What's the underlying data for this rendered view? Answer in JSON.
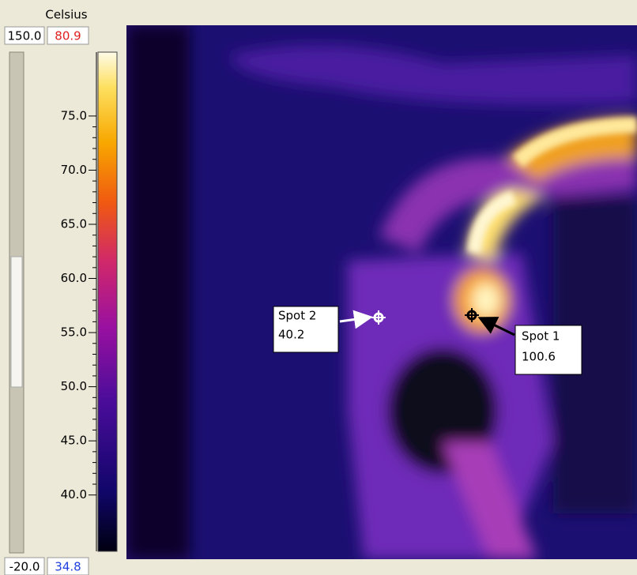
{
  "scale": {
    "unit": "Celsius",
    "range_max": "150.0",
    "range_min": "-20.0",
    "span_max": 80.9,
    "span_min": 34.8,
    "ticks": [
      {
        "value": 75,
        "label": "75.0"
      },
      {
        "value": 70,
        "label": "70.0"
      },
      {
        "value": 65,
        "label": "65.0"
      },
      {
        "value": 60,
        "label": "60.0"
      },
      {
        "value": 55,
        "label": "55.0"
      },
      {
        "value": 50,
        "label": "50.0"
      },
      {
        "value": 45,
        "label": "45.0"
      },
      {
        "value": 40,
        "label": "40.0"
      }
    ]
  },
  "spots": [
    {
      "name": "Spot 2",
      "value": "40.2"
    },
    {
      "name": "Spot 1",
      "value": "100.6"
    }
  ]
}
